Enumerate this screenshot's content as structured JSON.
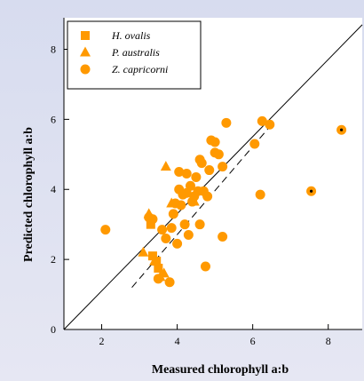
{
  "chart_data": {
    "type": "scatter",
    "xlabel": "Measured chlorophyll a:b",
    "ylabel": "Predicted chlorophyll a:b",
    "xlim": [
      1.0,
      8.9
    ],
    "ylim": [
      0,
      8.9
    ],
    "xticks": [
      2,
      4,
      6,
      8
    ],
    "yticks": [
      0,
      2,
      4,
      6,
      8
    ],
    "grid": false,
    "legend_position": "top-left",
    "colors": {
      "marker": "#ff9900",
      "outlier_center": "#000000"
    },
    "series": [
      {
        "name": "H. ovalis",
        "marker": "square",
        "points": [
          [
            3.3,
            3.0
          ],
          [
            3.35,
            2.1
          ],
          [
            3.45,
            1.95
          ],
          [
            3.5,
            1.75
          ]
        ]
      },
      {
        "name": "P. australis",
        "marker": "triangle",
        "points": [
          [
            3.1,
            2.2
          ],
          [
            3.25,
            3.3
          ],
          [
            3.4,
            1.95
          ],
          [
            3.55,
            1.5
          ],
          [
            3.65,
            1.6
          ],
          [
            3.7,
            4.65
          ],
          [
            3.85,
            3.6
          ],
          [
            4.45,
            3.65
          ]
        ]
      },
      {
        "name": "Z. capricorni",
        "marker": "circle",
        "points": [
          [
            2.1,
            2.85
          ],
          [
            3.25,
            3.2
          ],
          [
            3.35,
            3.15
          ],
          [
            3.5,
            1.45
          ],
          [
            3.6,
            2.85
          ],
          [
            3.7,
            2.6
          ],
          [
            3.8,
            1.35
          ],
          [
            3.85,
            2.9
          ],
          [
            3.9,
            3.3
          ],
          [
            3.95,
            3.6
          ],
          [
            4.0,
            2.45
          ],
          [
            4.05,
            4.0
          ],
          [
            4.05,
            4.5
          ],
          [
            4.1,
            3.55
          ],
          [
            4.15,
            3.85
          ],
          [
            4.2,
            3.0
          ],
          [
            4.25,
            4.45
          ],
          [
            4.25,
            3.9
          ],
          [
            4.3,
            2.7
          ],
          [
            4.35,
            4.1
          ],
          [
            4.4,
            3.65
          ],
          [
            4.45,
            3.8
          ],
          [
            4.5,
            4.35
          ],
          [
            4.55,
            3.95
          ],
          [
            4.6,
            3.0
          ],
          [
            4.6,
            4.85
          ],
          [
            4.65,
            4.75
          ],
          [
            4.7,
            3.95
          ],
          [
            4.75,
            1.8
          ],
          [
            4.8,
            3.8
          ],
          [
            4.85,
            4.55
          ],
          [
            4.9,
            5.4
          ],
          [
            5.0,
            5.05
          ],
          [
            5.0,
            5.35
          ],
          [
            5.1,
            5.0
          ],
          [
            5.2,
            2.65
          ],
          [
            5.2,
            4.65
          ],
          [
            5.3,
            5.9
          ],
          [
            6.05,
            5.3
          ],
          [
            6.2,
            3.85
          ],
          [
            6.25,
            5.95
          ],
          [
            6.45,
            5.85
          ]
        ]
      }
    ],
    "outliers": [
      [
        7.55,
        3.95
      ],
      [
        8.35,
        5.7
      ]
    ],
    "lines": [
      {
        "style": "solid",
        "x": [
          1.0,
          8.9
        ],
        "y": [
          0.0,
          8.7
        ]
      },
      {
        "style": "dashed",
        "x": [
          2.8,
          6.5
        ],
        "y": [
          1.2,
          5.85
        ]
      }
    ]
  }
}
